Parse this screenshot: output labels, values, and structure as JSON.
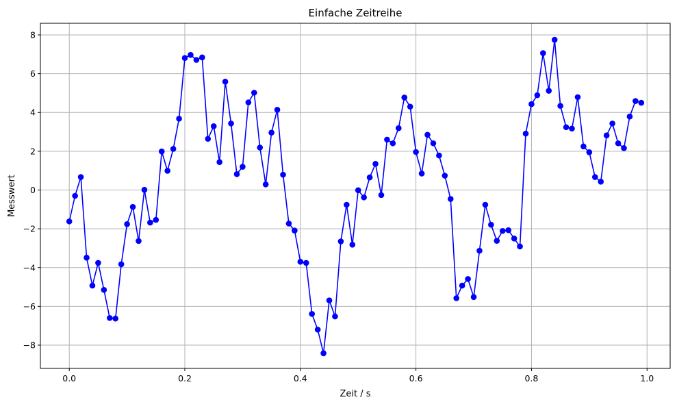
{
  "chart_data": {
    "type": "line",
    "title": "Einfache Zeitreihe",
    "xlabel": "Zeit / s",
    "ylabel": "Messwert",
    "xlim": [
      -0.05,
      1.04
    ],
    "ylim": [
      -9.2,
      8.6
    ],
    "grid": true,
    "x_ticks": [
      "0.0",
      "0.2",
      "0.4",
      "0.6",
      "0.8",
      "1.0"
    ],
    "y_ticks": [
      "−8",
      "−6",
      "−4",
      "−2",
      "0",
      "2",
      "4",
      "6",
      "8"
    ],
    "series": [
      {
        "color": "#0000ff",
        "marker": "circle",
        "x": [
          0.0,
          0.01,
          0.02,
          0.03,
          0.04,
          0.05,
          0.06,
          0.07,
          0.08,
          0.09,
          0.1,
          0.11,
          0.12,
          0.13,
          0.14,
          0.15,
          0.16,
          0.17,
          0.18,
          0.19,
          0.2,
          0.21,
          0.22,
          0.23,
          0.24,
          0.25,
          0.26,
          0.27,
          0.28,
          0.29,
          0.3,
          0.31,
          0.32,
          0.33,
          0.34,
          0.35,
          0.36,
          0.37,
          0.38,
          0.39,
          0.4,
          0.41,
          0.42,
          0.43,
          0.44,
          0.45,
          0.46,
          0.47,
          0.48,
          0.49,
          0.5,
          0.51,
          0.52,
          0.53,
          0.54,
          0.55,
          0.56,
          0.57,
          0.58,
          0.59,
          0.6,
          0.61,
          0.62,
          0.63,
          0.64,
          0.65,
          0.66,
          0.67,
          0.68,
          0.69,
          0.7,
          0.71,
          0.72,
          0.73,
          0.74,
          0.75,
          0.76,
          0.77,
          0.78,
          0.79,
          0.8,
          0.81,
          0.82,
          0.83,
          0.84,
          0.85,
          0.86,
          0.87,
          0.88,
          0.89,
          0.9,
          0.91,
          0.92,
          0.93,
          0.94,
          0.95,
          0.96,
          0.97,
          0.98,
          0.99
        ],
        "y": [
          -1.62,
          -0.3,
          0.67,
          -3.49,
          -4.93,
          -3.76,
          -5.15,
          -6.6,
          -6.63,
          -3.83,
          -1.76,
          -0.87,
          -2.63,
          0.01,
          -1.68,
          -1.54,
          1.99,
          0.99,
          2.12,
          3.68,
          6.81,
          6.97,
          6.71,
          6.84,
          2.64,
          3.29,
          1.44,
          5.59,
          3.43,
          0.82,
          1.2,
          4.52,
          5.02,
          2.19,
          0.29,
          2.96,
          4.14,
          0.79,
          -1.73,
          -2.09,
          -3.7,
          -3.76,
          -6.39,
          -7.2,
          -8.42,
          -5.69,
          -6.52,
          -2.65,
          -0.76,
          -2.82,
          -0.01,
          -0.38,
          0.65,
          1.35,
          -0.26,
          2.6,
          2.41,
          3.19,
          4.77,
          4.3,
          1.96,
          0.85,
          2.85,
          2.41,
          1.78,
          0.74,
          -0.46,
          -5.58,
          -4.93,
          -4.59,
          -5.52,
          -3.13,
          -0.76,
          -1.79,
          -2.62,
          -2.11,
          -2.07,
          -2.5,
          -2.91,
          2.91,
          4.43,
          4.89,
          7.06,
          5.12,
          7.75,
          4.34,
          3.24,
          3.17,
          4.79,
          2.25,
          1.95,
          0.67,
          0.43,
          2.82,
          3.43,
          2.41,
          2.16,
          3.79,
          4.59,
          4.5
        ]
      }
    ]
  }
}
